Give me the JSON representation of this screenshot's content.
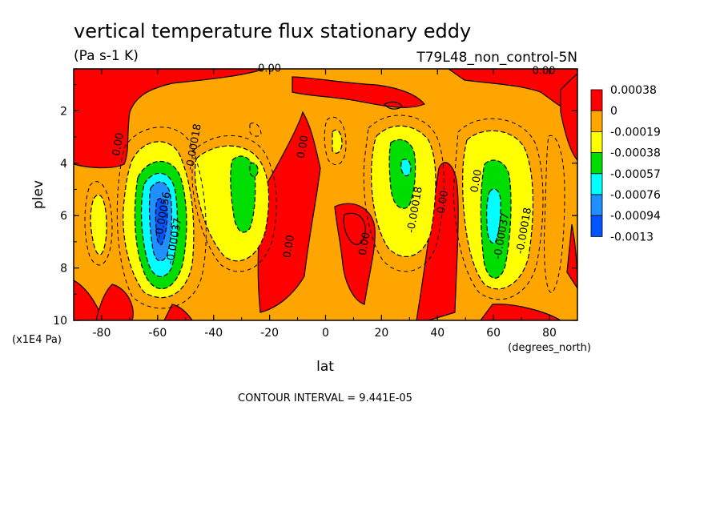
{
  "chart_data": {
    "type": "heatmap",
    "title": "vertical temperature flux stationary eddy",
    "subtitle": "(Pa s-1 K)",
    "run_label": "T79L48_non_control-5N",
    "xlabel": "lat",
    "x_unit": "(degrees_north)",
    "ylabel": "plev",
    "y_unit": "(x1E4 Pa)",
    "xlim": [
      -90,
      90
    ],
    "ylim": [
      10,
      0.4
    ],
    "y_inverted": true,
    "x_ticks": [
      -80,
      -60,
      -40,
      -20,
      0,
      20,
      40,
      60,
      80
    ],
    "x_tick_labels": [
      "-80",
      "-60",
      "-40",
      "-20",
      "0",
      "20",
      "40",
      "60",
      "80"
    ],
    "y_ticks": [
      2,
      4,
      6,
      8,
      10
    ],
    "y_tick_labels": [
      "2",
      "4",
      "6",
      "8",
      "10"
    ],
    "contour_interval_text": "CONTOUR INTERVAL = 9.441E-05",
    "colorbar": {
      "labels": [
        "0.00038",
        "0",
        "-0.00019",
        "-0.00038",
        "-0.00057",
        "-0.00076",
        "-0.00094",
        "-0.0013"
      ],
      "colors": [
        "#ff0000",
        "#ffa500",
        "#ffff00",
        "#00dd00",
        "#00ffff",
        "#1e90ff",
        "#0055ff"
      ]
    },
    "features": [
      {
        "name": "main minimum",
        "lat": -58,
        "plev": 6.0,
        "value": -0.0013
      },
      {
        "name": "secondary minimum",
        "lat": -30,
        "plev": 4.5,
        "value": -0.00057
      },
      {
        "name": "tropical minimum",
        "lat": 28,
        "plev": 4.3,
        "value": -0.00076
      },
      {
        "name": "high-latitude minimum",
        "lat": 62,
        "plev": 6.0,
        "value": -0.00076
      },
      {
        "name": "maximum",
        "lat": 10,
        "plev": 7.0,
        "value": 0.00038
      }
    ],
    "contour_labels": [
      {
        "text": "0.00",
        "lat": -73,
        "plev": 3.3
      },
      {
        "text": "-0.00018",
        "lat": -46,
        "plev": 3.4
      },
      {
        "text": "0.00",
        "lat": -7,
        "plev": 3.4
      },
      {
        "text": "0.00",
        "lat": -12,
        "plev": 7.2
      },
      {
        "text": "0.00",
        "lat": 15,
        "plev": 7.1
      },
      {
        "text": "0.00",
        "lat": 43,
        "plev": 5.5
      },
      {
        "text": "0.00",
        "lat": 55,
        "plev": 4.7
      },
      {
        "text": "-0.00018",
        "lat": 33,
        "plev": 5.8
      },
      {
        "text": "-0.00018",
        "lat": 72,
        "plev": 6.6
      },
      {
        "text": "-0.00037",
        "lat": 64,
        "plev": 6.8
      },
      {
        "text": "-0.00037",
        "lat": -53,
        "plev": 7.0
      },
      {
        "text": "-0.00056",
        "lat": -57,
        "plev": 6.0
      },
      {
        "text": "0.00",
        "lat": -20,
        "plev": 0.5
      },
      {
        "text": "0.00",
        "lat": 78,
        "plev": 0.6
      }
    ]
  }
}
